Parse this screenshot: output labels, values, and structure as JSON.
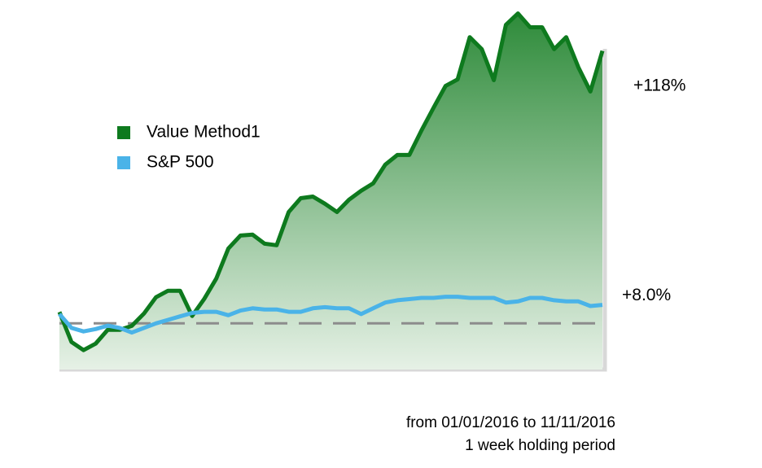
{
  "chart_data": {
    "type": "line",
    "series": [
      {
        "name": "Value Method1",
        "color": "#0e7a1e",
        "end_label": "+118%",
        "fill": true,
        "values": [
          4.9,
          -8.1,
          -11.6,
          -8.8,
          -2.8,
          -2.8,
          -1.1,
          4.2,
          11.3,
          14.1,
          14.1,
          3.2,
          10.6,
          19.4,
          32.4,
          38.0,
          38.4,
          34.5,
          33.8,
          48.2,
          54.2,
          54.9,
          51.8,
          48.2,
          53.5,
          57.4,
          60.6,
          68.7,
          72.9,
          72.9,
          83.5,
          93.3,
          102.8,
          105.6,
          123.9,
          118.7,
          105.3,
          129.2,
          134.2,
          128.2,
          128.2,
          118.7,
          123.9,
          110.9,
          100.4,
          118
        ]
      },
      {
        "name": "S&P 500",
        "color": "#4ab3e8",
        "end_label": "+8.0%",
        "fill": false,
        "values": [
          4,
          -2,
          -3.5,
          -2.5,
          -1,
          -2,
          -4,
          -2,
          0,
          1.5,
          3,
          4.5,
          5,
          5,
          3.5,
          5.5,
          6.5,
          6,
          6,
          5,
          5,
          6.5,
          7,
          6.5,
          6.5,
          4,
          6.5,
          9,
          10,
          10.5,
          11,
          11,
          11.5,
          11.5,
          11,
          11,
          11,
          9,
          9.5,
          11,
          11,
          10,
          9.5,
          9.5,
          7.5,
          8
        ]
      }
    ],
    "ylim": [
      -20,
      140
    ],
    "reference_line": 0,
    "footnote": [
      "from 01/01/2016 to 11/11/2016",
      "1 week holding period"
    ]
  }
}
